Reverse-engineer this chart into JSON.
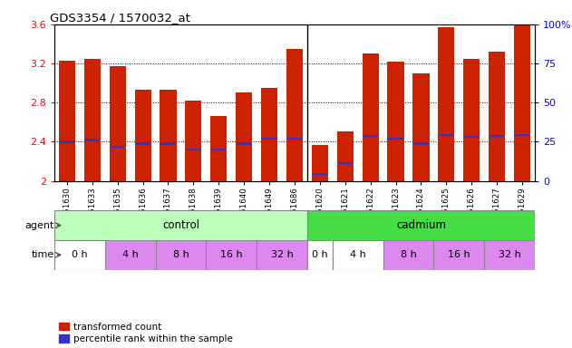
{
  "title": "GDS3354 / 1570032_at",
  "samples": [
    "GSM251630",
    "GSM251633",
    "GSM251635",
    "GSM251636",
    "GSM251637",
    "GSM251638",
    "GSM251639",
    "GSM251640",
    "GSM251649",
    "GSM251686",
    "GSM251620",
    "GSM251621",
    "GSM251622",
    "GSM251623",
    "GSM251624",
    "GSM251625",
    "GSM251626",
    "GSM251627",
    "GSM251629"
  ],
  "bar_heights": [
    3.23,
    3.25,
    3.17,
    2.93,
    2.93,
    2.82,
    2.66,
    2.9,
    2.95,
    3.35,
    2.37,
    2.51,
    3.3,
    3.22,
    3.1,
    3.57,
    3.25,
    3.32,
    3.6
  ],
  "blue_positions": [
    2.4,
    2.42,
    2.35,
    2.38,
    2.38,
    2.32,
    2.32,
    2.38,
    2.43,
    2.43,
    2.07,
    2.18,
    2.46,
    2.43,
    2.38,
    2.47,
    2.45,
    2.46,
    2.47
  ],
  "bar_color": "#cc2200",
  "blue_color": "#3333cc",
  "ylim_left": [
    2.0,
    3.6
  ],
  "ylim_right": [
    0,
    100
  ],
  "yticks_left": [
    2.0,
    2.4,
    2.8,
    3.2,
    3.6
  ],
  "yticks_right": [
    0,
    25,
    50,
    75,
    100
  ],
  "ytick_labels_left": [
    "2",
    "2.4",
    "2.8",
    "3.2",
    "3.6"
  ],
  "ytick_labels_right": [
    "0",
    "25",
    "50",
    "75",
    "100%"
  ],
  "control_color": "#bbffbb",
  "cadmium_color": "#44dd44",
  "time_white": "#ffffff",
  "time_pink": "#dd88ee",
  "legend_red_label": "transformed count",
  "legend_blue_label": "percentile rank within the sample",
  "time_groups": [
    [
      0,
      1,
      "0 h",
      false
    ],
    [
      2,
      3,
      "4 h",
      true
    ],
    [
      4,
      5,
      "8 h",
      true
    ],
    [
      6,
      7,
      "16 h",
      true
    ],
    [
      8,
      9,
      "32 h",
      true
    ],
    [
      10,
      10,
      "0 h",
      false
    ],
    [
      11,
      12,
      "4 h",
      false
    ],
    [
      13,
      14,
      "8 h",
      true
    ],
    [
      15,
      16,
      "16 h",
      true
    ],
    [
      17,
      18,
      "32 h",
      true
    ]
  ]
}
